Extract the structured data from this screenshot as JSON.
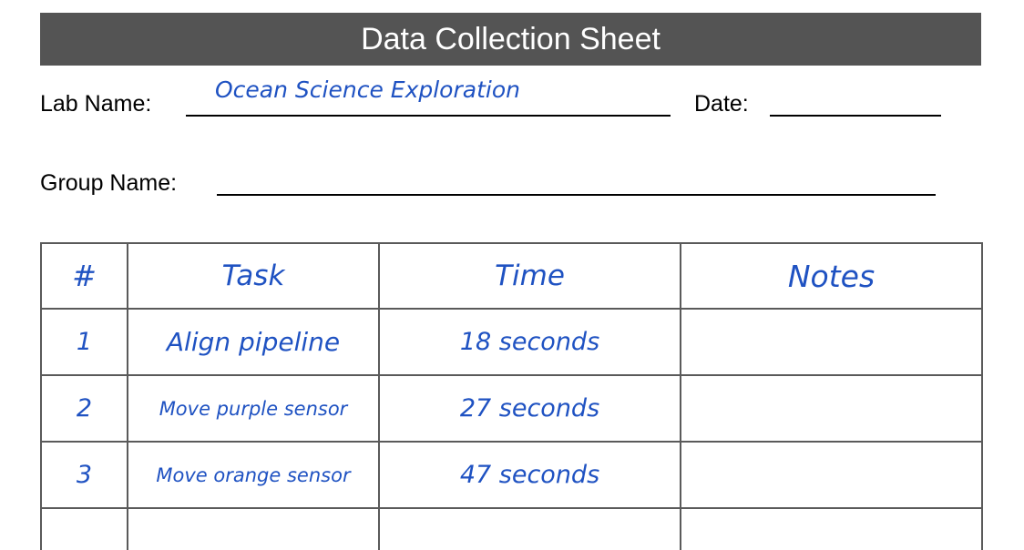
{
  "sheet": {
    "title": "Data Collection Sheet",
    "lab_name_label": "Lab Name:",
    "lab_name_value": "Ocean Science Exploration",
    "date_label": "Date:",
    "date_value": "",
    "group_name_label": "Group Name:",
    "group_name_value": ""
  },
  "table": {
    "headers": [
      "#",
      "Task",
      "Time",
      "Notes"
    ],
    "rows": [
      {
        "num": "1",
        "task": "Align pipeline",
        "time": "18 seconds",
        "notes": ""
      },
      {
        "num": "2",
        "task": "Move purple sensor",
        "time": "27 seconds",
        "notes": ""
      },
      {
        "num": "3",
        "task": "Move orange sensor",
        "time": "47 seconds",
        "notes": ""
      },
      {
        "num": "",
        "task": "",
        "time": "",
        "notes": ""
      }
    ]
  },
  "colors": {
    "title_bar": "#545454",
    "handwriting": "#1f52c2",
    "grid_lines": "#5a5a5a"
  }
}
